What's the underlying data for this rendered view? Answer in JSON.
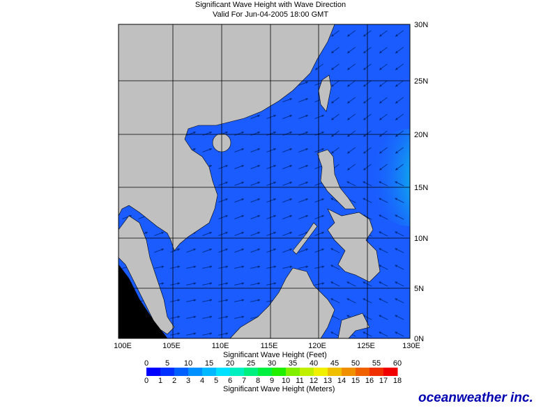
{
  "title": "Significant Wave Height with Wave Direction",
  "subtitle": "Valid For Jun-04-2005 18:00 GMT",
  "map": {
    "lat_labels": [
      "30N",
      "25N",
      "20N",
      "15N",
      "10N",
      "5N",
      "0N"
    ],
    "lon_labels": [
      "100E",
      "105E",
      "110E",
      "115E",
      "120E",
      "125E",
      "130E"
    ]
  },
  "colorbar": {
    "feet_ticks": [
      0,
      5,
      10,
      15,
      20,
      25,
      30,
      35,
      40,
      45,
      50,
      55,
      60
    ],
    "feet_title": "Significant Wave Height (Feet)",
    "meter_ticks": [
      0,
      1,
      2,
      3,
      4,
      5,
      6,
      7,
      8,
      9,
      10,
      11,
      12,
      13,
      14,
      15,
      16,
      17,
      18
    ],
    "meter_title": "Significant Wave Height (Meters)"
  },
  "logo": "oceanweather inc."
}
